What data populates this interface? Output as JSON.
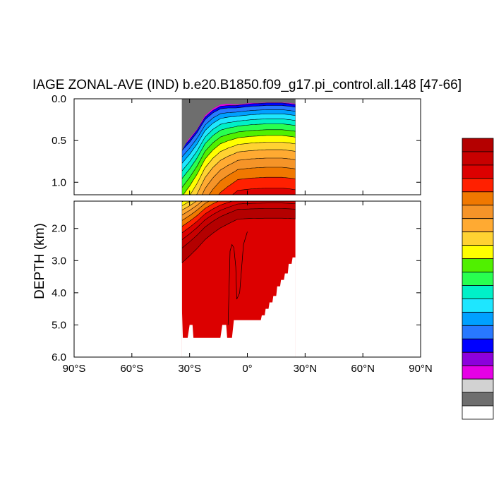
{
  "chart_data": {
    "type": "heatmap",
    "title": "IAGE ZONAL-AVE (IND) b.e20.B1850.f09_g17.pi_control.all.148 [47-66]",
    "ylabel": "DEPTH (km)",
    "xlabel": "",
    "xlim": [
      -90,
      90
    ],
    "ylim_upper_panel": [
      0.0,
      1.15
    ],
    "ylim_lower_panel": [
      1.15,
      6.0
    ],
    "x_ticks": [
      {
        "value": -90,
        "label": "90°S"
      },
      {
        "value": -60,
        "label": "60°S"
      },
      {
        "value": -30,
        "label": "30°S"
      },
      {
        "value": 0,
        "label": "0°"
      },
      {
        "value": 30,
        "label": "30°N"
      },
      {
        "value": 60,
        "label": "60°N"
      },
      {
        "value": 90,
        "label": "90°N"
      }
    ],
    "y_ticks_upper": [
      {
        "value": 0.0,
        "label": "0.0"
      },
      {
        "value": 0.5,
        "label": "0.5"
      },
      {
        "value": 1.0,
        "label": "1.0"
      }
    ],
    "y_ticks_lower": [
      {
        "value": 2.0,
        "label": "2.0"
      },
      {
        "value": 3.0,
        "label": "3.0"
      },
      {
        "value": 4.0,
        "label": "4.0"
      },
      {
        "value": 5.0,
        "label": "5.0"
      },
      {
        "value": 6.0,
        "label": "6.0"
      }
    ],
    "grid": false,
    "legend": "colorbar right, no labels",
    "colorbar_colors_top_to_bottom": [
      "#b40000",
      "#c80000",
      "#dc0000",
      "#ff2000",
      "#f07800",
      "#f59428",
      "#ffaa32",
      "#ffd232",
      "#ffff00",
      "#50f000",
      "#28ff50",
      "#00f0c8",
      "#1ee6ff",
      "#00a0ff",
      "#2878ff",
      "#0000ff",
      "#8c00dc",
      "#e600e6",
      "#d2d2d2",
      "#6e6e6e",
      "#ffffff"
    ],
    "data_extent": {
      "lon_min": -34,
      "lon_max": 25,
      "max_depth_km": 5.4,
      "land_color": "#6e6e6e"
    },
    "surface_layer_base_depth_km": [
      [
        -34,
        0.62
      ],
      [
        -30,
        0.52
      ],
      [
        -26,
        0.4
      ],
      [
        -22,
        0.25
      ],
      [
        -18,
        0.17
      ],
      [
        -14,
        0.12
      ],
      [
        -10,
        0.11
      ],
      [
        -6,
        0.11
      ],
      [
        -2,
        0.1
      ],
      [
        2,
        0.09
      ],
      [
        6,
        0.085
      ],
      [
        10,
        0.08
      ],
      [
        14,
        0.08
      ],
      [
        18,
        0.08
      ],
      [
        22,
        0.09
      ],
      [
        25,
        0.1
      ]
    ],
    "contour_level_offsets_km": [
      0.0,
      0.05,
      0.1,
      0.16,
      0.22,
      0.29,
      0.36,
      0.44,
      0.53,
      0.63,
      0.74,
      0.86,
      0.99,
      1.13,
      1.3,
      1.6
    ],
    "bottom_profile_km": [
      [
        -34,
        4.5
      ],
      [
        -33.5,
        5.4
      ],
      [
        -31,
        5.4
      ],
      [
        -30,
        5.0
      ],
      [
        -28.5,
        5.0
      ],
      [
        -28,
        5.4
      ],
      [
        -22,
        5.4
      ],
      [
        -18,
        5.4
      ],
      [
        -14,
        5.4
      ],
      [
        -13,
        5.0
      ],
      [
        -11,
        5.0
      ],
      [
        -10.5,
        5.4
      ],
      [
        -8,
        5.4
      ],
      [
        -7,
        4.85
      ],
      [
        -3,
        4.85
      ],
      [
        5,
        4.85
      ],
      [
        7,
        4.85
      ],
      [
        7.5,
        4.7
      ],
      [
        9,
        4.7
      ],
      [
        9.5,
        4.5
      ],
      [
        11,
        4.5
      ],
      [
        11.5,
        4.3
      ],
      [
        13,
        4.3
      ],
      [
        13.5,
        4.1
      ],
      [
        15,
        4.1
      ],
      [
        15.5,
        3.8
      ],
      [
        17,
        3.8
      ],
      [
        17.5,
        3.6
      ],
      [
        19,
        3.6
      ],
      [
        19.5,
        3.4
      ],
      [
        21,
        3.4
      ],
      [
        21.5,
        3.1
      ],
      [
        23,
        3.1
      ],
      [
        23.5,
        2.9
      ],
      [
        25,
        2.9
      ],
      [
        25,
        2.0
      ]
    ],
    "seamount_ridge_km": [
      [
        -10,
        5.0
      ],
      [
        -9,
        2.7
      ],
      [
        -8,
        2.5
      ],
      [
        -7,
        2.6
      ],
      [
        -6,
        3.2
      ],
      [
        -5.5,
        4.2
      ],
      [
        -4,
        4.0
      ],
      [
        -2,
        2.5
      ],
      [
        0,
        2.1
      ]
    ],
    "shelf": [
      [
        -34,
        0.0
      ],
      [
        -34,
        0.62
      ],
      [
        -31,
        0.5
      ],
      [
        -26,
        0.36
      ],
      [
        -22,
        0.2
      ],
      [
        -18,
        0.12
      ],
      [
        -14,
        0.07
      ],
      [
        -10,
        0.06
      ],
      [
        -6,
        0.07
      ],
      [
        -2,
        0.06
      ],
      [
        2,
        0.05
      ],
      [
        6,
        0.05
      ],
      [
        10,
        0.045
      ],
      [
        14,
        0.045
      ],
      [
        18,
        0.045
      ],
      [
        22,
        0.05
      ],
      [
        25,
        0.06
      ],
      [
        25,
        0.0
      ]
    ]
  }
}
